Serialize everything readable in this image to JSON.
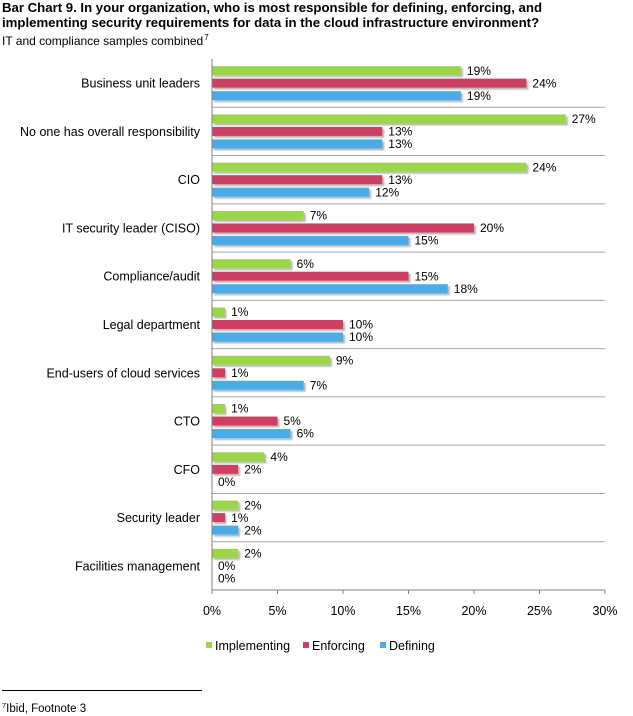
{
  "header": {
    "title": "Bar Chart 9. In your organization, who is most responsible for defining, enforcing, and implementing security requirements for data in the cloud infrastructure environment?",
    "subtitle": "IT and compliance samples combined",
    "subtitle_sup": "7"
  },
  "footnote": {
    "sup": "7",
    "text": "Ibid, Footnote 3"
  },
  "colors": {
    "Implementing": "#9bd64a",
    "Enforcing": "#cc3f63",
    "Defining": "#4aace6"
  },
  "chart_data": {
    "type": "bar",
    "orientation": "horizontal",
    "categories": [
      "Business unit leaders",
      "No one has overall responsibility",
      "CIO",
      "IT security leader (CISO)",
      "Compliance/audit",
      "Legal department",
      "End-users of cloud services",
      "CTO",
      "CFO",
      "Security leader",
      "Facilities management"
    ],
    "series": [
      {
        "name": "Implementing",
        "values": [
          19,
          27,
          24,
          7,
          6,
          1,
          9,
          1,
          4,
          2,
          2
        ]
      },
      {
        "name": "Enforcing",
        "values": [
          24,
          13,
          13,
          20,
          15,
          10,
          1,
          5,
          2,
          1,
          0
        ]
      },
      {
        "name": "Defining",
        "values": [
          19,
          13,
          12,
          15,
          18,
          10,
          7,
          6,
          0,
          2,
          0
        ]
      }
    ],
    "value_suffix": "%",
    "xlim": [
      0,
      30
    ],
    "xticks": [
      "0%",
      "5%",
      "10%",
      "15%",
      "20%",
      "25%",
      "30%"
    ],
    "xtick_values": [
      0,
      5,
      10,
      15,
      20,
      25,
      30
    ],
    "legend": [
      "Implementing",
      "Enforcing",
      "Defining"
    ],
    "legend_position": "bottom",
    "grid": "horizontal separators between categories"
  }
}
